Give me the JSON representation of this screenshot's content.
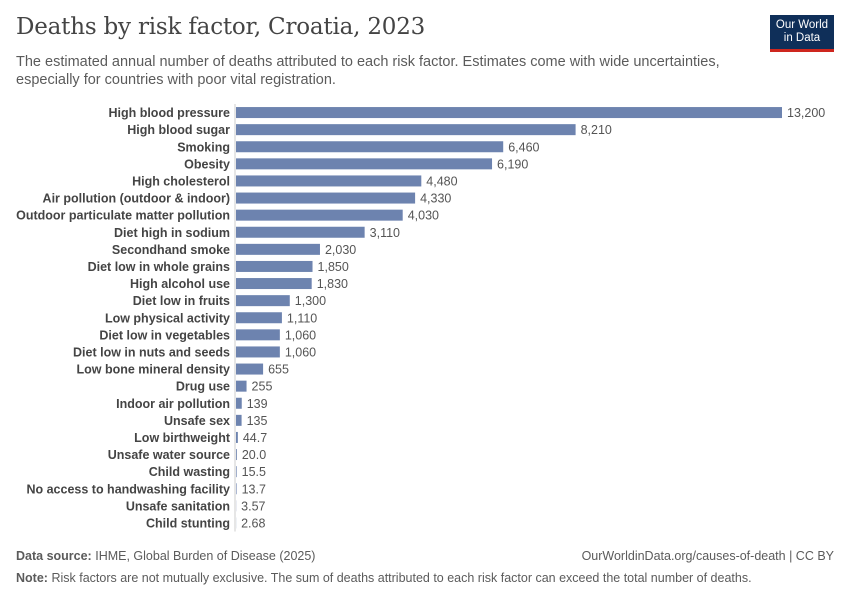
{
  "title": "Deaths by risk factor, Croatia, 2023",
  "subtitle": "The estimated annual number of deaths attributed to each risk factor. Estimates come with wide uncertainties, especially for countries with poor vital registration.",
  "logo": {
    "line1": "Our World",
    "line2": "in Data"
  },
  "footer": {
    "source_label": "Data source:",
    "source_text": "IHME, Global Burden of Disease (2025)",
    "url": "OurWorldinData.org/causes-of-death | CC BY",
    "note_label": "Note:",
    "note_text": "Risk factors are not mutually exclusive. The sum of deaths attributed to each risk factor can exceed the total number of deaths."
  },
  "colors": {
    "bar": "#6d83af",
    "axis": "#cccccc"
  },
  "chart_data": {
    "type": "bar",
    "orientation": "horizontal",
    "categories": [
      "High blood pressure",
      "High blood sugar",
      "Smoking",
      "Obesity",
      "High cholesterol",
      "Air pollution (outdoor & indoor)",
      "Outdoor particulate matter pollution",
      "Diet high in sodium",
      "Secondhand smoke",
      "Diet low in whole grains",
      "High alcohol use",
      "Diet low in fruits",
      "Low physical activity",
      "Diet low in vegetables",
      "Diet low in nuts and seeds",
      "Low bone mineral density",
      "Drug use",
      "Indoor air pollution",
      "Unsafe sex",
      "Low birthweight",
      "Unsafe water source",
      "Child wasting",
      "No access to handwashing facility",
      "Unsafe sanitation",
      "Child stunting"
    ],
    "values": [
      13200,
      8210,
      6460,
      6190,
      4480,
      4330,
      4030,
      3110,
      2030,
      1850,
      1830,
      1300,
      1110,
      1060,
      1060,
      655,
      255,
      139,
      135,
      44.7,
      20.0,
      15.5,
      13.7,
      3.57,
      2.68
    ],
    "value_labels": [
      "13,200",
      "8,210",
      "6,460",
      "6,190",
      "4,480",
      "4,330",
      "4,030",
      "3,110",
      "2,030",
      "1,850",
      "1,830",
      "1,300",
      "1,110",
      "1,060",
      "1,060",
      "655",
      "255",
      "139",
      "135",
      "44.7",
      "20.0",
      "15.5",
      "13.7",
      "3.57",
      "2.68"
    ],
    "xlim": [
      0,
      13200
    ]
  }
}
